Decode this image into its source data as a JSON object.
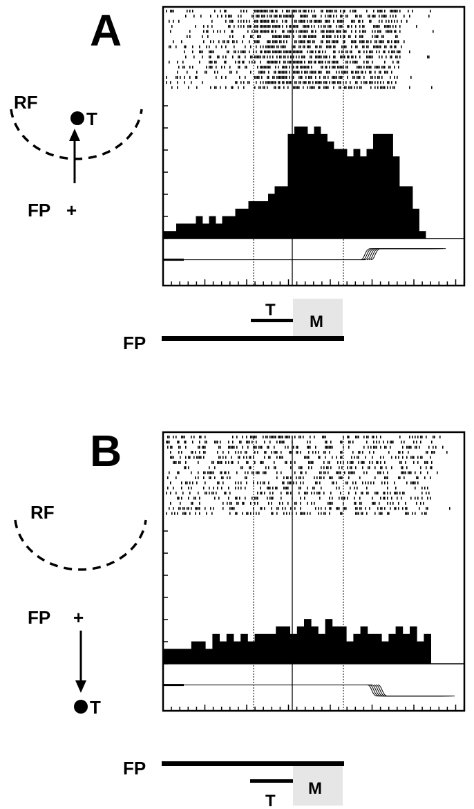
{
  "panels": [
    {
      "letter": "A",
      "rf_label": "RF",
      "target_label": "T",
      "fixation_label": "FP",
      "fixation_symbol": "+",
      "timeline": {
        "fp_label": "FP",
        "target_label": "T",
        "memory_label": "M"
      }
    },
    {
      "letter": "B",
      "rf_label": "RF",
      "target_label": "T",
      "fixation_label": "FP",
      "fixation_symbol": "+",
      "timeline": {
        "fp_label": "FP",
        "target_label": "T",
        "memory_label": "M"
      }
    }
  ],
  "chart_data": [
    {
      "type": "bar",
      "panel": "A",
      "raster_trials": 16,
      "raster_density": "high between target onset and saccade",
      "histogram_bins": 40,
      "values": [
        1,
        1,
        2,
        2,
        2,
        3,
        2,
        3,
        2,
        3,
        3,
        4,
        4,
        5,
        5,
        5,
        6,
        7,
        7,
        14,
        15,
        15,
        14,
        15,
        14,
        13,
        12,
        12,
        11,
        12,
        11,
        12,
        14,
        14,
        14,
        11,
        7,
        7,
        4,
        1
      ],
      "event_markers": [
        "target onset",
        "target offset",
        "fixation point offset"
      ],
      "grid": false
    },
    {
      "type": "bar",
      "panel": "B",
      "raster_trials": 16,
      "raster_density": "uniform low",
      "histogram_bins": 38,
      "values": [
        2,
        2,
        2,
        2,
        3,
        3,
        2,
        4,
        3,
        4,
        3,
        4,
        3,
        4,
        4,
        4,
        5,
        5,
        4,
        5,
        6,
        5,
        4,
        6,
        5,
        5,
        3,
        4,
        5,
        4,
        4,
        3,
        4,
        5,
        4,
        5,
        3,
        4
      ],
      "event_markers": [
        "target onset",
        "target offset",
        "fixation point offset"
      ],
      "grid": false
    }
  ]
}
